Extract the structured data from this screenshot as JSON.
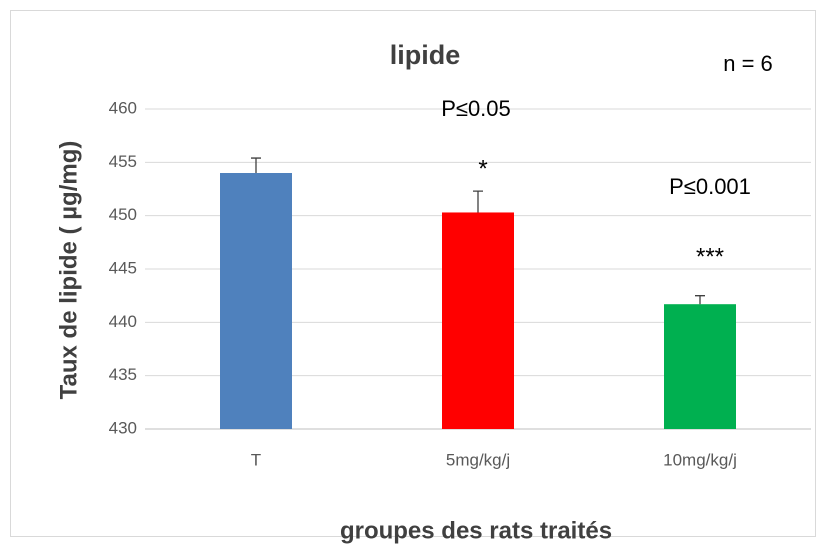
{
  "chart_data": {
    "type": "bar",
    "title": "lipide",
    "x_label": "groupes des rats traités",
    "y_label": "Taux de lipide ( µg/mg)",
    "categories": [
      "T",
      "5mg/kg/j",
      "10mg/kg/j"
    ],
    "values": [
      454,
      450.3,
      441.7
    ],
    "errors": [
      1.4,
      2,
      0.8
    ],
    "colors": [
      "#4f81bd",
      "#ff0000",
      "#00b050"
    ],
    "ylim": [
      430,
      460
    ],
    "yticks": [
      430,
      435,
      440,
      445,
      450,
      455,
      460
    ],
    "grid": true,
    "annotations": [
      "n = 6",
      "P≤0.05",
      "*",
      "P≤0.001",
      "***"
    ]
  }
}
